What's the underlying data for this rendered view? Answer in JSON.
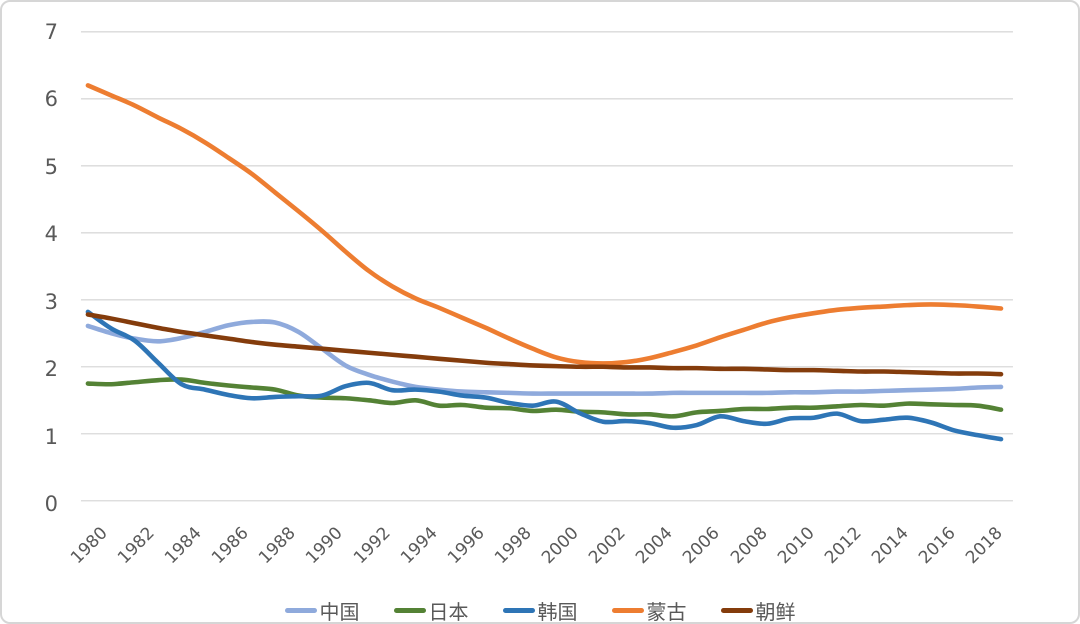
{
  "figure": {
    "background_color": "#ffffff",
    "border_color": "#d6d6d6",
    "axis_text_color": "#595959",
    "gridline_color": "#d9d9d9"
  },
  "chart_data": {
    "type": "line",
    "title": "",
    "xlabel": "",
    "ylabel": "",
    "ylim": [
      0,
      7
    ],
    "y_ticks": [
      0,
      1,
      2,
      3,
      4,
      5,
      6,
      7
    ],
    "x_start_year": 1980,
    "x_end_year": 2019,
    "x_tick_labels": [
      "1980",
      "1982",
      "1984",
      "1986",
      "1988",
      "1990",
      "1992",
      "1994",
      "1996",
      "1998",
      "2000",
      "2002",
      "2004",
      "2006",
      "2008",
      "2010",
      "2012",
      "2014",
      "2016",
      "2018"
    ],
    "grid": "horizontal",
    "legend_position": "bottom",
    "series": [
      {
        "name": "中国",
        "color": "#8faadc",
        "values": [
          2.61,
          2.5,
          2.42,
          2.38,
          2.43,
          2.52,
          2.62,
          2.67,
          2.66,
          2.52,
          2.27,
          2.02,
          1.88,
          1.78,
          1.7,
          1.66,
          1.63,
          1.62,
          1.61,
          1.6,
          1.6,
          1.6,
          1.6,
          1.6,
          1.6,
          1.61,
          1.61,
          1.61,
          1.61,
          1.61,
          1.62,
          1.62,
          1.63,
          1.63,
          1.64,
          1.65,
          1.66,
          1.67,
          1.69,
          1.7
        ]
      },
      {
        "name": "日本",
        "color": "#548235",
        "values": [
          1.75,
          1.74,
          1.77,
          1.8,
          1.81,
          1.76,
          1.72,
          1.69,
          1.66,
          1.57,
          1.54,
          1.53,
          1.5,
          1.46,
          1.5,
          1.42,
          1.43,
          1.39,
          1.38,
          1.34,
          1.36,
          1.33,
          1.32,
          1.29,
          1.29,
          1.26,
          1.32,
          1.34,
          1.37,
          1.37,
          1.39,
          1.39,
          1.41,
          1.43,
          1.42,
          1.45,
          1.44,
          1.43,
          1.42,
          1.36
        ]
      },
      {
        "name": "韩国",
        "color": "#2e75b6",
        "values": [
          2.82,
          2.57,
          2.39,
          2.06,
          1.74,
          1.66,
          1.58,
          1.53,
          1.55,
          1.56,
          1.57,
          1.71,
          1.76,
          1.65,
          1.66,
          1.63,
          1.57,
          1.54,
          1.46,
          1.42,
          1.48,
          1.31,
          1.18,
          1.19,
          1.16,
          1.09,
          1.13,
          1.26,
          1.19,
          1.15,
          1.23,
          1.24,
          1.3,
          1.19,
          1.21,
          1.24,
          1.17,
          1.05,
          0.98,
          0.92
        ]
      },
      {
        "name": "蒙古",
        "color": "#ed7d31",
        "values": [
          6.2,
          6.05,
          5.9,
          5.72,
          5.55,
          5.35,
          5.12,
          4.88,
          4.6,
          4.32,
          4.03,
          3.72,
          3.43,
          3.2,
          3.02,
          2.88,
          2.73,
          2.58,
          2.42,
          2.27,
          2.14,
          2.07,
          2.05,
          2.07,
          2.13,
          2.22,
          2.32,
          2.44,
          2.55,
          2.66,
          2.74,
          2.8,
          2.85,
          2.88,
          2.9,
          2.92,
          2.93,
          2.92,
          2.9,
          2.87
        ]
      },
      {
        "name": "朝鲜",
        "color": "#843c0c",
        "values": [
          2.78,
          2.72,
          2.65,
          2.58,
          2.52,
          2.47,
          2.42,
          2.37,
          2.33,
          2.3,
          2.27,
          2.24,
          2.21,
          2.18,
          2.15,
          2.12,
          2.09,
          2.06,
          2.04,
          2.02,
          2.01,
          2.0,
          2.0,
          1.99,
          1.99,
          1.98,
          1.98,
          1.97,
          1.97,
          1.96,
          1.95,
          1.95,
          1.94,
          1.93,
          1.93,
          1.92,
          1.91,
          1.9,
          1.9,
          1.89
        ]
      }
    ]
  }
}
